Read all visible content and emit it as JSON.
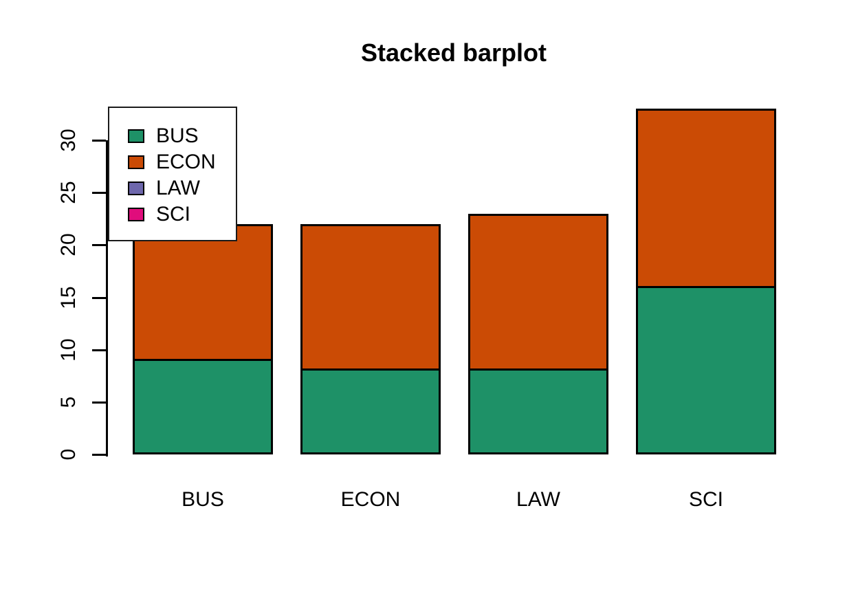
{
  "chart_data": {
    "type": "bar",
    "stacked": true,
    "title": "Stacked barplot",
    "categories": [
      "BUS",
      "ECON",
      "LAW",
      "SCI"
    ],
    "series": [
      {
        "name": "BUS",
        "color": "#1E9167",
        "values": [
          9,
          8,
          8,
          16
        ]
      },
      {
        "name": "ECON",
        "color": "#CB4B05",
        "values": [
          13,
          14,
          15,
          17
        ]
      },
      {
        "name": "LAW",
        "color": "#6E67AC",
        "values": [
          0,
          0,
          0,
          0
        ]
      },
      {
        "name": "SCI",
        "color": "#E00D7C",
        "values": [
          0,
          0,
          0,
          0
        ]
      }
    ],
    "stack_totals": [
      22,
      22,
      23,
      33
    ],
    "y_ticks": [
      0,
      5,
      10,
      15,
      20,
      25,
      30
    ],
    "ylim": [
      0,
      33
    ],
    "xlabel": "",
    "ylabel": "",
    "grid": false,
    "legend": {
      "position": "top-left",
      "entries": [
        {
          "label": "BUS",
          "color": "#1E9167"
        },
        {
          "label": "ECON",
          "color": "#CB4B05"
        },
        {
          "label": "LAW",
          "color": "#6E67AC"
        },
        {
          "label": "SCI",
          "color": "#E00D7C"
        }
      ]
    },
    "colors": {
      "background": "#FFFFFF",
      "text": "#000000",
      "bar_border": "#000000",
      "legend_border": "#1A1A1A"
    }
  }
}
